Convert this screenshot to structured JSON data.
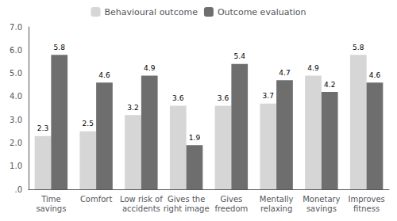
{
  "chart_data": {
    "type": "bar",
    "categories": [
      "Time\nsavings",
      "Comfort",
      "Low risk of\naccidents",
      "Gives the\nright image",
      "Gives\nfreedom",
      "Mentally\nrelaxing",
      "Monetary\nsavings",
      "Improves\nfitness"
    ],
    "series": [
      {
        "name": "Behavioural outcome",
        "color": "#d6d6d6",
        "values": [
          2.3,
          2.5,
          3.2,
          3.6,
          3.6,
          3.7,
          4.9,
          5.8
        ]
      },
      {
        "name": "Outcome evaluation",
        "color": "#6e6e6e",
        "values": [
          5.8,
          4.6,
          4.9,
          1.9,
          5.4,
          4.7,
          4.2,
          4.6
        ]
      }
    ],
    "ylim": [
      0,
      7.0
    ],
    "yticks": [
      {
        "value": 0.0,
        "label": ".0"
      },
      {
        "value": 1.0,
        "label": "1.0"
      },
      {
        "value": 2.0,
        "label": "2.0"
      },
      {
        "value": 3.0,
        "label": "3.0"
      },
      {
        "value": 4.0,
        "label": "4.0"
      },
      {
        "value": 5.0,
        "label": "5.0"
      },
      {
        "value": 6.0,
        "label": "6.0"
      },
      {
        "value": 7.0,
        "label": "7.0"
      }
    ],
    "grid": false,
    "legend": "top",
    "data_labels": true
  }
}
